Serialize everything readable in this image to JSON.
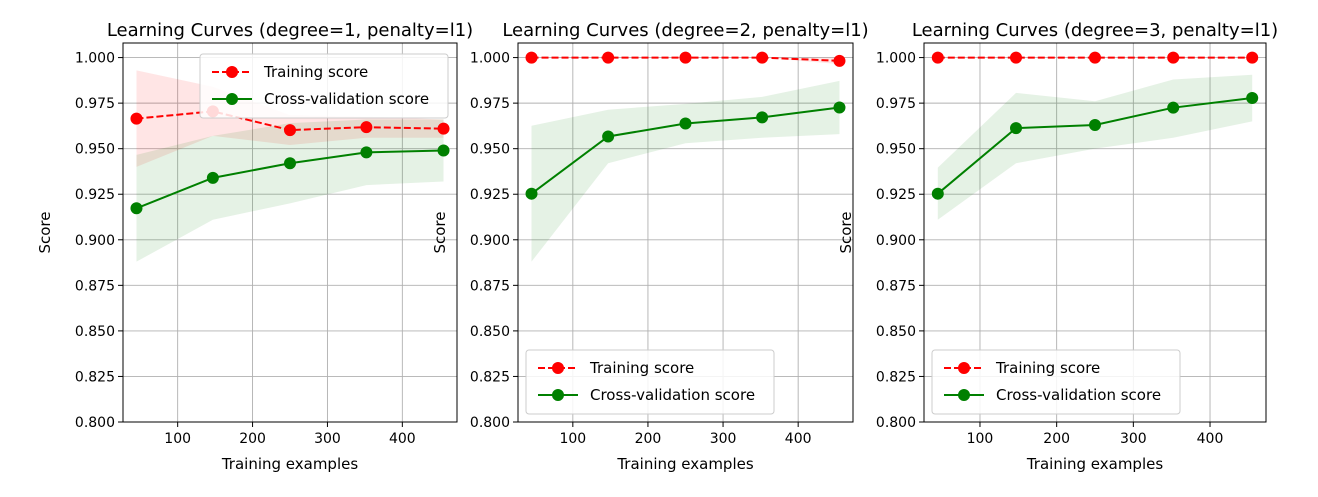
{
  "chart_data": [
    {
      "type": "line",
      "title": "Learning Curves (degree=1, penalty=l1)",
      "xlabel": "Training examples",
      "ylabel": "Score",
      "xlim": [
        27,
        473
      ],
      "ylim": [
        0.8,
        1.008
      ],
      "xticks": [
        100,
        200,
        300,
        400
      ],
      "yticks": [
        0.8,
        0.825,
        0.85,
        0.875,
        0.9,
        0.925,
        0.95,
        0.975,
        1.0
      ],
      "grid": true,
      "legend_loc": "upper right",
      "x": [
        45,
        147,
        250,
        352,
        455
      ],
      "series": [
        {
          "name": "Training score",
          "color": "#ff0000",
          "style": "dashed",
          "values": [
            0.9665,
            0.9705,
            0.9602,
            0.9618,
            0.961
          ],
          "band_low": [
            0.94,
            0.957,
            0.952,
            0.956,
            0.956
          ],
          "band_high": [
            0.993,
            0.984,
            0.9684,
            0.9676,
            0.966
          ]
        },
        {
          "name": "Cross-validation score",
          "color": "#008000",
          "style": "solid",
          "values": [
            0.9173,
            0.934,
            0.942,
            0.948,
            0.949
          ],
          "band_low": [
            0.888,
            0.911,
            0.92,
            0.93,
            0.932
          ],
          "band_high": [
            0.9466,
            0.957,
            0.964,
            0.966,
            0.966
          ]
        }
      ]
    },
    {
      "type": "line",
      "title": "Learning Curves (degree=2, penalty=l1)",
      "xlabel": "Training examples",
      "ylabel": "Score",
      "xlim": [
        27,
        473
      ],
      "ylim": [
        0.8,
        1.008
      ],
      "xticks": [
        100,
        200,
        300,
        400
      ],
      "yticks": [
        0.8,
        0.825,
        0.85,
        0.875,
        0.9,
        0.925,
        0.95,
        0.975,
        1.0
      ],
      "grid": true,
      "legend_loc": "lower left",
      "x": [
        45,
        147,
        250,
        352,
        455
      ],
      "series": [
        {
          "name": "Training score",
          "color": "#ff0000",
          "style": "dashed",
          "values": [
            1.0,
            1.0,
            1.0,
            1.0,
            0.9982
          ],
          "band_low": [
            1.0,
            1.0,
            1.0,
            1.0,
            0.9964
          ],
          "band_high": [
            1.0,
            1.0,
            1.0,
            1.0,
            1.0
          ]
        },
        {
          "name": "Cross-validation score",
          "color": "#008000",
          "style": "solid",
          "values": [
            0.9253,
            0.9567,
            0.9638,
            0.9672,
            0.9726
          ],
          "band_low": [
            0.888,
            0.942,
            0.953,
            0.956,
            0.958
          ],
          "band_high": [
            0.9626,
            0.9714,
            0.9746,
            0.9784,
            0.9872
          ]
        }
      ]
    },
    {
      "type": "line",
      "title": "Learning Curves (degree=3, penalty=l1)",
      "xlabel": "Training examples",
      "ylabel": "Score",
      "xlim": [
        27,
        473
      ],
      "ylim": [
        0.8,
        1.008
      ],
      "xticks": [
        100,
        200,
        300,
        400
      ],
      "yticks": [
        0.8,
        0.825,
        0.85,
        0.875,
        0.9,
        0.925,
        0.95,
        0.975,
        1.0
      ],
      "grid": true,
      "legend_loc": "lower left",
      "x": [
        45,
        147,
        250,
        352,
        455
      ],
      "series": [
        {
          "name": "Training score",
          "color": "#ff0000",
          "style": "dashed",
          "values": [
            1.0,
            1.0,
            1.0,
            1.0,
            1.0
          ],
          "band_low": [
            1.0,
            1.0,
            1.0,
            1.0,
            1.0
          ],
          "band_high": [
            1.0,
            1.0,
            1.0,
            1.0,
            1.0
          ]
        },
        {
          "name": "Cross-validation score",
          "color": "#008000",
          "style": "solid",
          "values": [
            0.9253,
            0.9613,
            0.963,
            0.9725,
            0.9778
          ],
          "band_low": [
            0.911,
            0.942,
            0.95,
            0.956,
            0.965
          ],
          "band_high": [
            0.9396,
            0.9806,
            0.976,
            0.988,
            0.9906
          ]
        }
      ]
    }
  ]
}
